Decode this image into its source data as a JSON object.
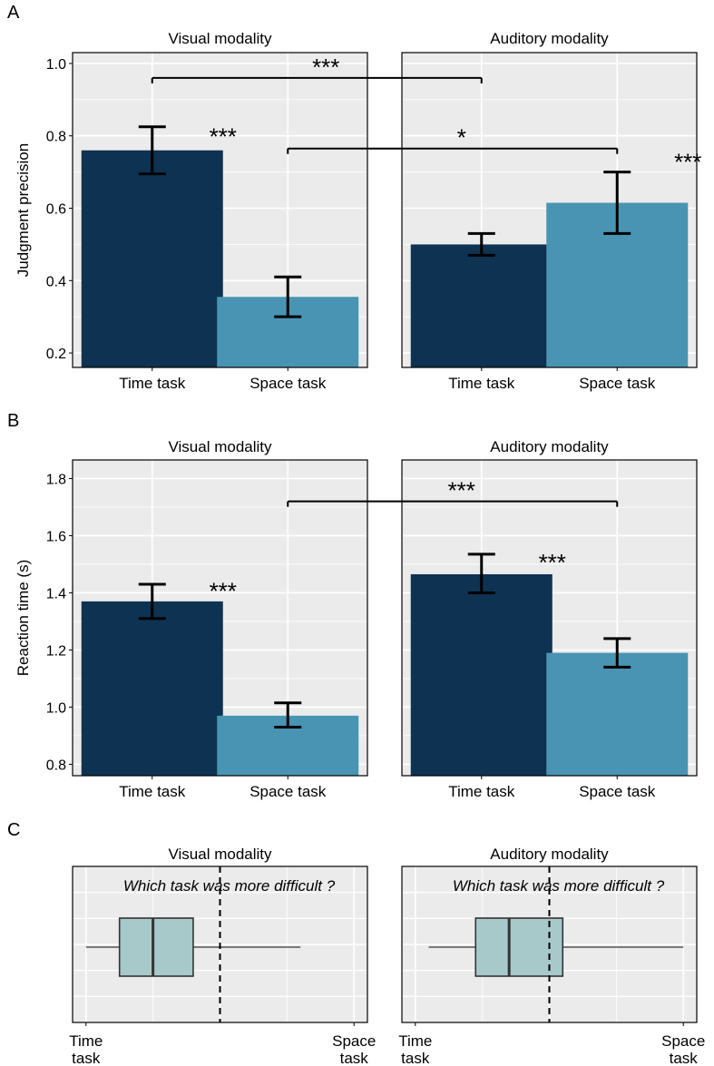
{
  "colors": {
    "time_bar": "#0e3252",
    "space_bar": "#4994b3",
    "panel_bg": "#ebebeb",
    "grid": "#ffffff",
    "box_fill": "#a8c9ca",
    "axis_text": "#000000"
  },
  "chart_data": [
    {
      "panel_label": "A",
      "type": "bar",
      "ylabel": "Judgment precision",
      "ylim": [
        0.16,
        1.03
      ],
      "yticks": [
        0.2,
        0.4,
        0.6,
        0.8,
        1.0
      ],
      "ytick_labels": [
        "0.2",
        "0.4",
        "0.6",
        "0.8",
        "1.0"
      ],
      "categories": [
        "Time task",
        "Space task"
      ],
      "facets": [
        {
          "title": "Visual modality",
          "values": [
            0.76,
            0.355
          ],
          "err_low": [
            0.695,
            0.3
          ],
          "err_high": [
            0.825,
            0.41
          ],
          "stars": [
            {
              "cat": 0,
              "y": 0.8,
              "text": "***"
            }
          ]
        },
        {
          "title": "Auditory modality",
          "values": [
            0.5,
            0.615
          ],
          "err_low": [
            0.47,
            0.53
          ],
          "err_high": [
            0.53,
            0.7
          ],
          "stars": [
            {
              "cat": 1,
              "y": 0.73,
              "text": "***"
            }
          ]
        }
      ],
      "comparisons": [
        {
          "from": [
            0,
            0
          ],
          "to": [
            1,
            0
          ],
          "y": 0.96,
          "label_y": 0.98,
          "text": "***"
        },
        {
          "from": [
            0,
            1
          ],
          "to": [
            1,
            1
          ],
          "y": 0.765,
          "label_y": 0.785,
          "text": "*"
        }
      ]
    },
    {
      "panel_label": "B",
      "type": "bar",
      "ylabel": "Reaction time (s)",
      "ylim": [
        0.76,
        1.865
      ],
      "yticks": [
        0.8,
        1.0,
        1.2,
        1.4,
        1.6,
        1.8
      ],
      "ytick_labels": [
        "0.8",
        "1.0",
        "1.2",
        "1.4",
        "1.6",
        "1.8"
      ],
      "categories": [
        "Time task",
        "Space task"
      ],
      "facets": [
        {
          "title": "Visual modality",
          "values": [
            1.37,
            0.97
          ],
          "err_low": [
            1.31,
            0.93
          ],
          "err_high": [
            1.43,
            1.015
          ],
          "stars": [
            {
              "cat": 0,
              "y": 1.41,
              "text": "***"
            }
          ]
        },
        {
          "title": "Auditory modality",
          "values": [
            1.465,
            1.19
          ],
          "err_low": [
            1.4,
            1.14
          ],
          "err_high": [
            1.535,
            1.24
          ],
          "stars": [
            {
              "cat": 0,
              "y": 1.51,
              "text": "***"
            }
          ]
        }
      ],
      "comparisons": [
        {
          "from": [
            0,
            1
          ],
          "to": [
            1,
            1
          ],
          "y": 1.72,
          "label_y": 1.745,
          "text": "***"
        }
      ]
    },
    {
      "panel_label": "C",
      "type": "boxplot",
      "question": "Which task was more difficult ?",
      "xlim": [
        -0.05,
        1.05
      ],
      "xticks": [
        0,
        0.5,
        1
      ],
      "xtick_left": [
        "Time",
        "task"
      ],
      "xtick_right": [
        "Space",
        "task"
      ],
      "midline": 0.5,
      "facets": [
        {
          "title": "Visual modality",
          "whisker_low": 0.0,
          "q1": 0.125,
          "median": 0.25,
          "q3": 0.4,
          "whisker_high": 0.8
        },
        {
          "title": "Auditory modality",
          "whisker_low": 0.05,
          "q1": 0.225,
          "median": 0.35,
          "q3": 0.55,
          "whisker_high": 1.0
        }
      ]
    }
  ]
}
